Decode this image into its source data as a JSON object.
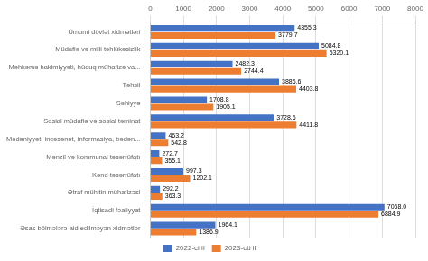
{
  "chart_data": {
    "type": "bar",
    "orientation": "horizontal",
    "categories": [
      "Ümumi dövlət xidmətləri",
      "Müdafiə və milli təhlükəsizlik",
      "Məhkəmə hakimiyyəti, hüquq mühafizə va...",
      "Təhsil",
      "Səhiyyə",
      "Sosial müdafiə və sosial təminat",
      "Mədəniyyət, incəsənət, informasiya, bədən...",
      "Mənzil və kommunal təsərrüfatı",
      "Kənd təsərrüfatı",
      "Ətraf mühitin mühafizəsi",
      "İqtisadi fəaliyyat",
      "Əsas bölmələrə aid edilməyən xidmətlər"
    ],
    "series": [
      {
        "name": "2022-ci il",
        "color": "#4472c4",
        "values": [
          4355.3,
          5084.8,
          2482.3,
          3886.6,
          1708.8,
          3728.6,
          463.2,
          272.7,
          997.3,
          292.2,
          7068.0,
          1964.1
        ],
        "value_labels": [
          "4355.3",
          "5084.8",
          "2482.3",
          "3886.6",
          "1708.8",
          "3728.6",
          "463.2",
          "272.7",
          "997.3",
          "292.2",
          "7068.0",
          "1964.1"
        ]
      },
      {
        "name": "2023-cü il",
        "color": "#ed7d31",
        "values": [
          3779.7,
          5320.1,
          2744.4,
          4403.8,
          1905.1,
          4411.8,
          542.8,
          355.1,
          1202.1,
          363.3,
          6884.9,
          1386.9
        ],
        "value_labels": [
          "3779.7",
          "5320.1",
          "2744.4",
          "4403.8",
          "1905.1",
          "4411.8",
          "542.8",
          "355.1",
          "1202.1",
          "363.3",
          "6884.9",
          "1386.9"
        ]
      }
    ],
    "xlim": [
      0,
      8000
    ],
    "xticks": [
      0,
      1000,
      2000,
      3000,
      4000,
      5000,
      6000,
      7000,
      8000
    ],
    "grid": true,
    "legend": "bottom",
    "data_labels": true
  }
}
